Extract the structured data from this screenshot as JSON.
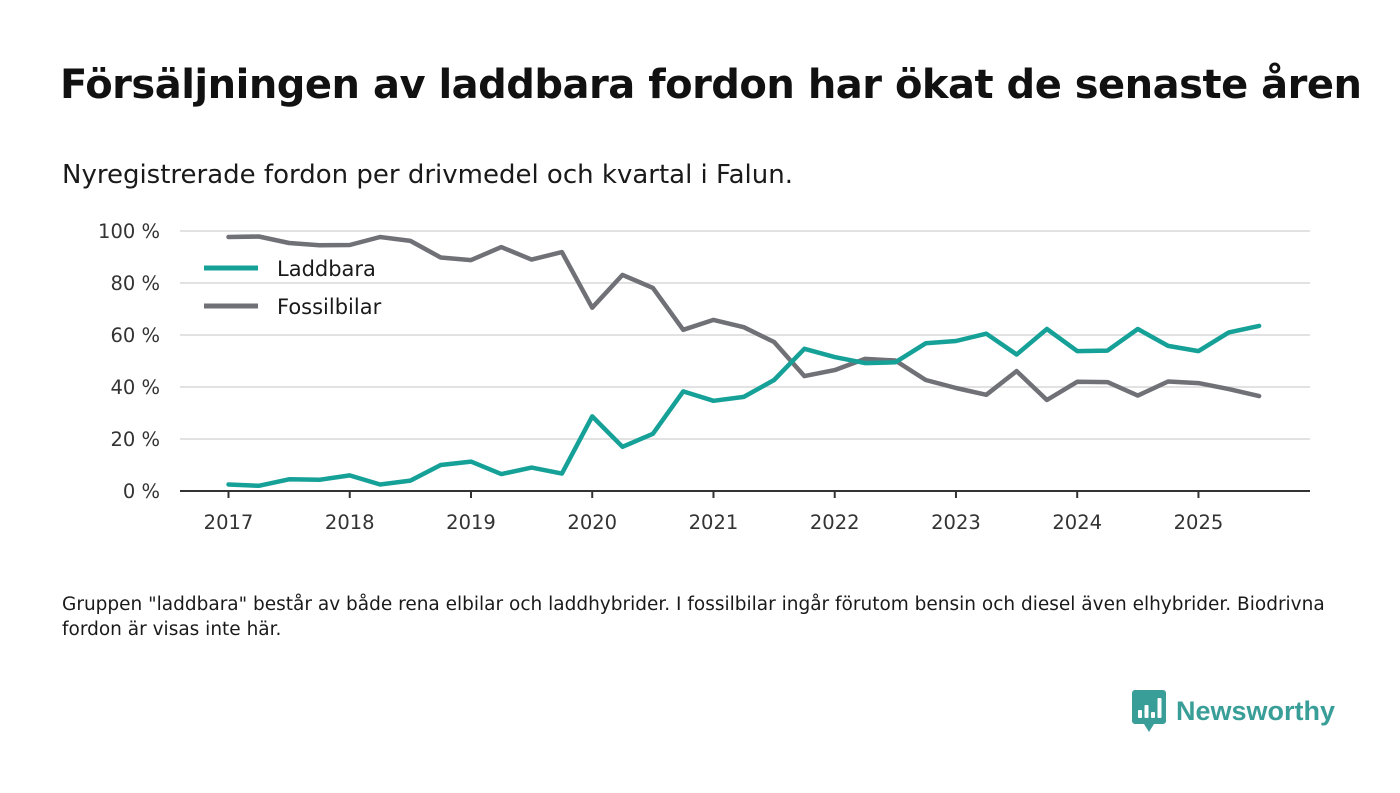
{
  "title": "Försäljningen av laddbara fordon har ökat de senaste åren",
  "subtitle": "Nyregistrerade fordon per drivmedel och kvartal i Falun.",
  "footnote": "Gruppen \"laddbara\" består av både rena elbilar och laddhybrider. I fossilbilar ingår förutom bensin och diesel även elhybrider. Biodrivna fordon är visas inte här.",
  "brand": {
    "name": "Newsworthy",
    "icon": "newsworthy-logo-icon",
    "color": "#3a9e98"
  },
  "chart_data": {
    "type": "line",
    "title": "Försäljningen av laddbara fordon har ökat de senaste åren",
    "xlabel": "",
    "ylabel": "",
    "ylim": [
      0,
      100
    ],
    "yticks": [
      0,
      20,
      40,
      60,
      80,
      100
    ],
    "ytick_labels": [
      "0 %",
      "20 %",
      "40 %",
      "60 %",
      "80 %",
      "100 %"
    ],
    "xlim": [
      2016.6,
      2025.92
    ],
    "xticks": [
      2017,
      2018,
      2019,
      2020,
      2021,
      2022,
      2023,
      2024,
      2025
    ],
    "xtick_labels": [
      "2017",
      "2018",
      "2019",
      "2020",
      "2021",
      "2022",
      "2023",
      "2024",
      "2025"
    ],
    "grid": true,
    "legend_position": "top-left",
    "x": [
      2017,
      2017.25,
      2017.5,
      2017.75,
      2018,
      2018.25,
      2018.5,
      2018.75,
      2019,
      2019.25,
      2019.5,
      2019.75,
      2020,
      2020.25,
      2020.5,
      2020.75,
      2021,
      2021.25,
      2021.5,
      2021.75,
      2022,
      2022.25,
      2022.5,
      2022.75,
      2023,
      2023.25,
      2023.5,
      2023.75,
      2024,
      2024.25,
      2024.5,
      2024.75,
      2025,
      2025.25,
      2025.5
    ],
    "series": [
      {
        "name": "Laddbara",
        "color": "#16a198",
        "values": [
          2.5,
          2,
          4.5,
          4.3,
          6,
          2.5,
          4,
          10,
          11.3,
          6.5,
          9,
          6.7,
          28.7,
          17,
          22,
          38.3,
          34.7,
          36.2,
          42.7,
          54.7,
          51.5,
          49.2,
          49.5,
          56.8,
          57.7,
          60.5,
          52.5,
          62.3,
          53.8,
          54,
          62.3,
          55.8,
          53.8,
          61,
          63.5
        ]
      },
      {
        "name": "Fossilbilar",
        "color": "#707077",
        "values": [
          97.7,
          97.9,
          95.4,
          94.5,
          94.6,
          97.7,
          96.2,
          89.8,
          88.8,
          93.8,
          89,
          91.9,
          70.5,
          83.1,
          78.1,
          62,
          65.8,
          63,
          57.3,
          44.2,
          46.5,
          50.8,
          50.2,
          42.7,
          39.6,
          37,
          46.1,
          35,
          42,
          41.9,
          36.7,
          42.1,
          41.5,
          39.2,
          36.5
        ]
      }
    ]
  }
}
